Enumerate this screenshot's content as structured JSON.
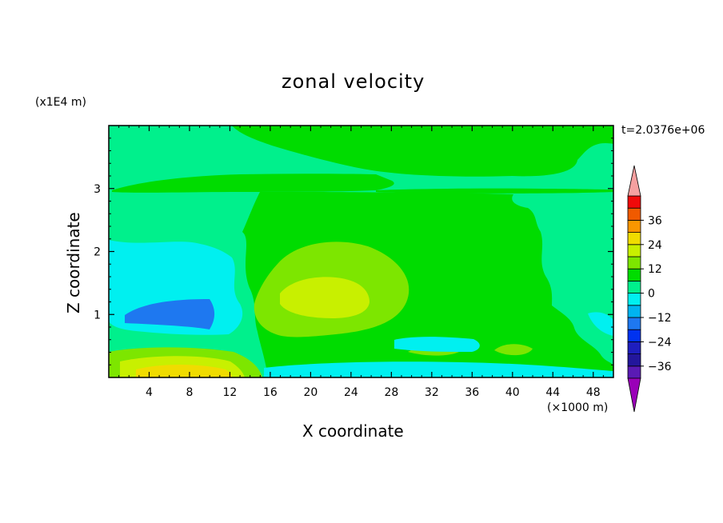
{
  "chart_data": {
    "type": "heatmap",
    "title": "zonal velocity",
    "xlabel": "X coordinate",
    "ylabel": "Z coordinate",
    "x_unit_label": "(×1000 m)",
    "y_unit_label": "(x1E4 m)",
    "time_label": "t=2.0376e+06",
    "xlim": [
      0,
      50
    ],
    "ylim": [
      0,
      4
    ],
    "x_ticks": [
      4,
      8,
      12,
      16,
      20,
      24,
      28,
      32,
      36,
      40,
      44,
      48
    ],
    "y_ticks": [
      1,
      2,
      3
    ],
    "colorbar": {
      "levels": [
        -42,
        -36,
        -30,
        -24,
        -18,
        -12,
        -6,
        0,
        6,
        12,
        18,
        24,
        30,
        36,
        42
      ],
      "tick_labels": [
        "36",
        "24",
        "12",
        "0",
        "-12",
        "-24",
        "-36"
      ],
      "colors": [
        "#5a1ab4",
        "#23169c",
        "#1e1ebe",
        "#0032f0",
        "#1e78f0",
        "#00b4f0",
        "#00f0f0",
        "#00f08c",
        "#00dc00",
        "#7de600",
        "#c8f000",
        "#f0dc00",
        "#fa9600",
        "#f05a00",
        "#f00a0a"
      ],
      "below_color": "#9a00b8",
      "above_color": "#f5a0a0"
    },
    "regions": [
      {
        "value": "-3 to 3 (background)",
        "color": "#00f08c"
      },
      {
        "value": "0 to 6 (upper band)",
        "color": "#00dc00"
      },
      {
        "value": "0 to 6 (central core)",
        "color": "#00dc00"
      },
      {
        "value": "6 to 12",
        "color": "#7de600"
      },
      {
        "value": "12 to 18",
        "color": "#c8f000"
      },
      {
        "value": "-6 to -12",
        "color": "#00f0f0"
      },
      {
        "value": "-12 to -18",
        "color": "#1e78f0"
      },
      {
        "value": "18 to 24 (surface)",
        "color": "#f0dc00"
      }
    ]
  }
}
